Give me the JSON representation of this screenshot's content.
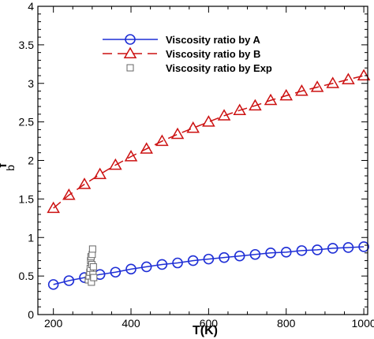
{
  "chart_data": {
    "type": "line",
    "xlabel": "T(K)",
    "ylabel": "f",
    "ylabel_subscript": "b",
    "xlim": [
      160,
      1010
    ],
    "ylim": [
      0,
      4
    ],
    "xticks": [
      200,
      400,
      600,
      800,
      1000
    ],
    "yticks": [
      0,
      0.5,
      1,
      1.5,
      2,
      2.5,
      3,
      3.5,
      4
    ],
    "ytick_labels": [
      "0",
      "0.5",
      "1",
      "1.5",
      "2",
      "2.5",
      "3",
      "3.5",
      "4"
    ],
    "legend_position": "top-right",
    "grid": false,
    "series": [
      {
        "name": "Viscosity ratio by A",
        "color": "#1f2fd6",
        "marker": "circle",
        "line": "solid",
        "x": [
          200,
          240,
          280,
          320,
          360,
          400,
          440,
          480,
          520,
          560,
          600,
          640,
          680,
          720,
          760,
          800,
          840,
          880,
          920,
          960,
          1000
        ],
        "y": [
          0.39,
          0.44,
          0.48,
          0.52,
          0.55,
          0.59,
          0.62,
          0.65,
          0.67,
          0.7,
          0.72,
          0.74,
          0.76,
          0.78,
          0.8,
          0.81,
          0.83,
          0.84,
          0.86,
          0.87,
          0.88
        ]
      },
      {
        "name": "Viscosity ratio by B",
        "color": "#cc1111",
        "marker": "triangle",
        "line": "dashed",
        "x": [
          200,
          240,
          280,
          320,
          360,
          400,
          440,
          480,
          520,
          560,
          600,
          640,
          680,
          720,
          760,
          800,
          840,
          880,
          920,
          960,
          1000
        ],
        "y": [
          1.38,
          1.55,
          1.69,
          1.82,
          1.94,
          2.05,
          2.15,
          2.25,
          2.34,
          2.42,
          2.5,
          2.58,
          2.65,
          2.71,
          2.78,
          2.84,
          2.9,
          2.95,
          3.0,
          3.05,
          3.1
        ]
      },
      {
        "name": "Viscosity ratio by Exp",
        "color": "#666666",
        "marker": "square",
        "line": "none",
        "x": [
          290,
          292,
          294,
          295,
          296,
          297,
          298,
          299,
          300,
          301,
          302,
          303,
          304
        ],
        "y": [
          0.45,
          0.5,
          0.55,
          0.6,
          0.7,
          0.75,
          0.42,
          0.65,
          0.78,
          0.85,
          0.52,
          0.62,
          0.48
        ]
      }
    ]
  }
}
